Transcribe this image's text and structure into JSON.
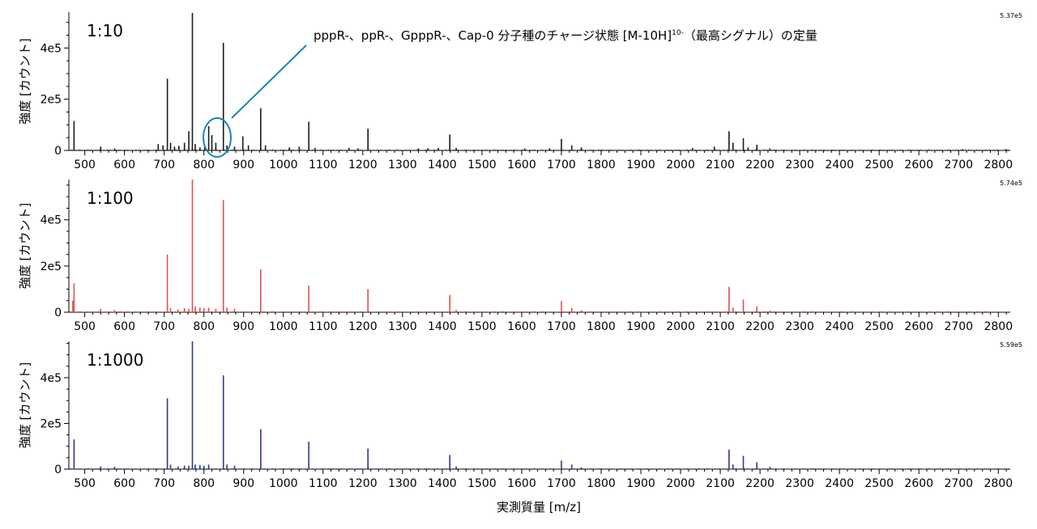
{
  "chart_data": [
    {
      "type": "line",
      "label": "1:10",
      "max_label": "5.37e5",
      "color": "#1a1a1a",
      "xlabel": "",
      "ylabel": "強度 [カウント]",
      "xlim": [
        460,
        2830
      ],
      "ylim": [
        0,
        540000
      ],
      "yticks": [
        0,
        200000,
        400000
      ],
      "ytick_labels": [
        "0",
        "2e5",
        "4e5"
      ],
      "xticks": [
        500,
        600,
        700,
        800,
        900,
        1000,
        1100,
        1200,
        1300,
        1400,
        1500,
        1600,
        1700,
        1800,
        1900,
        2000,
        2100,
        2200,
        2300,
        2400,
        2500,
        2600,
        2700,
        2800
      ],
      "xtick_labels": [
        "500",
        "600",
        "700",
        "800",
        "900",
        "1000",
        "1100",
        "1200",
        "1300",
        "1400",
        "1500",
        "1600",
        "1700",
        "1800",
        "1900",
        "2000",
        "2100",
        "2200",
        "2300",
        "2400",
        "2500",
        "2600",
        "2700",
        "2800"
      ],
      "peaks": [
        [
          473,
          115000
        ],
        [
          540,
          15000
        ],
        [
          575,
          8000
        ],
        [
          685,
          25000
        ],
        [
          697,
          20000
        ],
        [
          708,
          280000
        ],
        [
          716,
          30000
        ],
        [
          726,
          15000
        ],
        [
          737,
          18000
        ],
        [
          751,
          30000
        ],
        [
          762,
          75000
        ],
        [
          771,
          537000
        ],
        [
          778,
          25000
        ],
        [
          790,
          12000
        ],
        [
          802,
          20000
        ],
        [
          812,
          95000
        ],
        [
          820,
          60000
        ],
        [
          830,
          30000
        ],
        [
          849,
          420000
        ],
        [
          858,
          20000
        ],
        [
          877,
          15000
        ],
        [
          898,
          55000
        ],
        [
          912,
          20000
        ],
        [
          943,
          165000
        ],
        [
          955,
          20000
        ],
        [
          1015,
          12000
        ],
        [
          1040,
          15000
        ],
        [
          1064,
          112000
        ],
        [
          1080,
          10000
        ],
        [
          1165,
          10000
        ],
        [
          1188,
          8000
        ],
        [
          1213,
          85000
        ],
        [
          1340,
          8000
        ],
        [
          1364,
          8000
        ],
        [
          1390,
          10000
        ],
        [
          1419,
          62000
        ],
        [
          1435,
          10000
        ],
        [
          1608,
          8000
        ],
        [
          1670,
          8000
        ],
        [
          1700,
          45000
        ],
        [
          1726,
          20000
        ],
        [
          1750,
          12000
        ],
        [
          2030,
          10000
        ],
        [
          2085,
          15000
        ],
        [
          2122,
          75000
        ],
        [
          2132,
          30000
        ],
        [
          2158,
          48000
        ],
        [
          2170,
          12000
        ],
        [
          2192,
          22000
        ],
        [
          2225,
          8000
        ],
        [
          2710,
          5000
        ],
        [
          2820,
          5000
        ]
      ],
      "annotation": {
        "text": "pppR-、ppR-、GpppR-、Cap-0 分子種のチャージ状態 [M-10H]",
        "superscript": "10-",
        "suffix": "（最高シグナル）の定量"
      }
    },
    {
      "type": "line",
      "label": "1:100",
      "max_label": "5.74e5",
      "color": "#d9534f",
      "xlabel": "",
      "ylabel": "強度 [カウント]",
      "xlim": [
        460,
        2830
      ],
      "ylim": [
        0,
        574000
      ],
      "yticks": [
        0,
        200000,
        400000
      ],
      "ytick_labels": [
        "0",
        "2e5",
        "4e5"
      ],
      "xticks": [
        500,
        600,
        700,
        800,
        900,
        1000,
        1100,
        1200,
        1300,
        1400,
        1500,
        1600,
        1700,
        1800,
        1900,
        2000,
        2100,
        2200,
        2300,
        2400,
        2500,
        2600,
        2700,
        2800
      ],
      "xtick_labels": [
        "500",
        "600",
        "700",
        "800",
        "900",
        "1000",
        "1100",
        "1200",
        "1300",
        "1400",
        "1500",
        "1600",
        "1700",
        "1800",
        "1900",
        "2000",
        "2100",
        "2200",
        "2300",
        "2400",
        "2500",
        "2600",
        "2700",
        "2800"
      ],
      "peaks": [
        [
          470,
          50000
        ],
        [
          473,
          125000
        ],
        [
          540,
          15000
        ],
        [
          575,
          10000
        ],
        [
          708,
          250000
        ],
        [
          716,
          18000
        ],
        [
          735,
          12000
        ],
        [
          751,
          18000
        ],
        [
          762,
          15000
        ],
        [
          771,
          574000
        ],
        [
          778,
          25000
        ],
        [
          790,
          20000
        ],
        [
          800,
          18000
        ],
        [
          812,
          20000
        ],
        [
          830,
          15000
        ],
        [
          849,
          485000
        ],
        [
          858,
          20000
        ],
        [
          877,
          15000
        ],
        [
          943,
          185000
        ],
        [
          1064,
          115000
        ],
        [
          1213,
          100000
        ],
        [
          1419,
          75000
        ],
        [
          1435,
          10000
        ],
        [
          1700,
          48000
        ],
        [
          1726,
          18000
        ],
        [
          1750,
          8000
        ],
        [
          2122,
          110000
        ],
        [
          2132,
          20000
        ],
        [
          2158,
          55000
        ],
        [
          2192,
          25000
        ],
        [
          2225,
          8000
        ]
      ]
    },
    {
      "type": "line",
      "label": "1:1000",
      "max_label": "5.59e5",
      "color": "#2e3a87",
      "xlabel": "実測質量 [m/z]",
      "ylabel": "強度 [カウント]",
      "xlim": [
        460,
        2830
      ],
      "ylim": [
        0,
        559000
      ],
      "yticks": [
        0,
        200000,
        400000
      ],
      "ytick_labels": [
        "0",
        "2e5",
        "4e5"
      ],
      "xticks": [
        500,
        600,
        700,
        800,
        900,
        1000,
        1100,
        1200,
        1300,
        1400,
        1500,
        1600,
        1700,
        1800,
        1900,
        2000,
        2100,
        2200,
        2300,
        2400,
        2500,
        2600,
        2700,
        2800
      ],
      "xtick_labels": [
        "500",
        "600",
        "700",
        "800",
        "900",
        "1000",
        "1100",
        "1200",
        "1300",
        "1400",
        "1500",
        "1600",
        "1700",
        "1800",
        "1900",
        "2000",
        "2100",
        "2200",
        "2300",
        "2400",
        "2500",
        "2600",
        "2700",
        "2800"
      ],
      "peaks": [
        [
          473,
          130000
        ],
        [
          540,
          12000
        ],
        [
          575,
          10000
        ],
        [
          708,
          310000
        ],
        [
          716,
          20000
        ],
        [
          735,
          12000
        ],
        [
          751,
          15000
        ],
        [
          762,
          15000
        ],
        [
          771,
          559000
        ],
        [
          778,
          20000
        ],
        [
          790,
          18000
        ],
        [
          800,
          15000
        ],
        [
          812,
          20000
        ],
        [
          849,
          410000
        ],
        [
          858,
          20000
        ],
        [
          877,
          15000
        ],
        [
          943,
          175000
        ],
        [
          1064,
          120000
        ],
        [
          1213,
          90000
        ],
        [
          1419,
          62000
        ],
        [
          1435,
          12000
        ],
        [
          1700,
          38000
        ],
        [
          1726,
          20000
        ],
        [
          1750,
          8000
        ],
        [
          2122,
          85000
        ],
        [
          2132,
          20000
        ],
        [
          2158,
          58000
        ],
        [
          2192,
          30000
        ],
        [
          2225,
          10000
        ]
      ]
    }
  ]
}
